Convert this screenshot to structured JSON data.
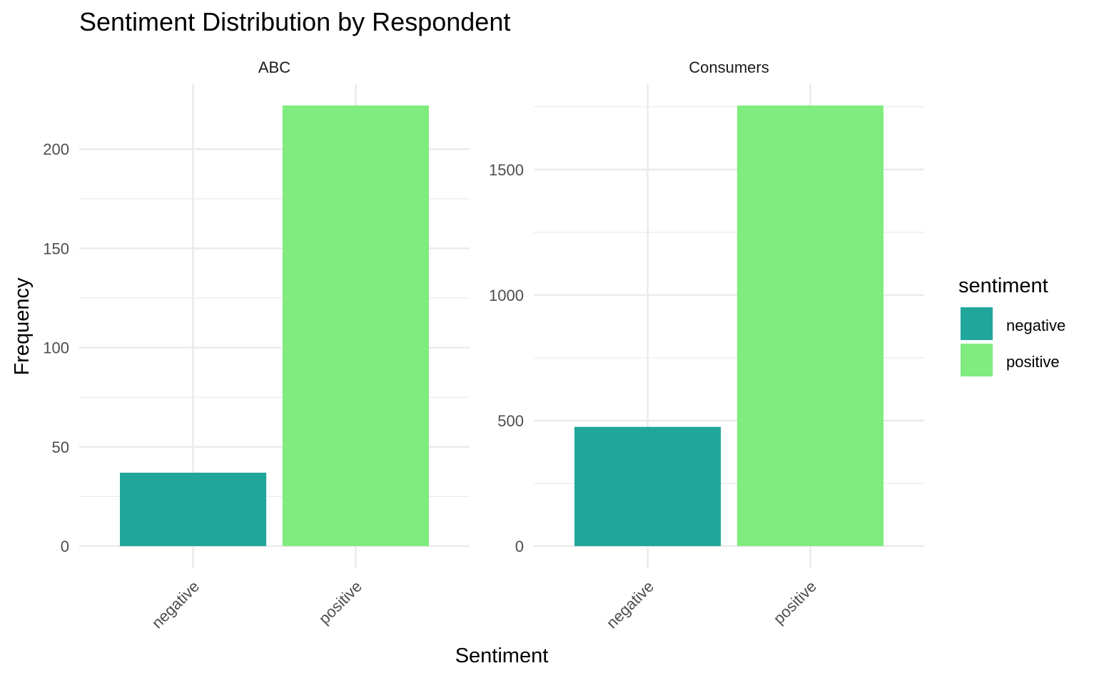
{
  "chart_data": {
    "type": "bar",
    "title": "Sentiment Distribution by Respondent",
    "xlabel": "Sentiment",
    "ylabel": "Frequency",
    "grid": true,
    "legend": {
      "title": "sentiment",
      "placement": "right",
      "entries": [
        {
          "label": "negative",
          "color": "#21a69c"
        },
        {
          "label": "positive",
          "color": "#80eb7e"
        }
      ]
    },
    "panels": [
      {
        "strip": "ABC",
        "categories": [
          "negative",
          "positive"
        ],
        "values": [
          37,
          222
        ],
        "ylim": [
          0,
          222
        ],
        "yticks": [
          0,
          50,
          100,
          150,
          200
        ],
        "ytick_labels": [
          "0",
          "50",
          "100",
          "150",
          "200"
        ]
      },
      {
        "strip": "Consumers",
        "categories": [
          "negative",
          "positive"
        ],
        "values": [
          475,
          1755
        ],
        "ylim": [
          0,
          1755
        ],
        "yticks": [
          0,
          500,
          1000,
          1500
        ],
        "ytick_labels": [
          "0",
          "500",
          "1000",
          "1500"
        ]
      }
    ]
  }
}
